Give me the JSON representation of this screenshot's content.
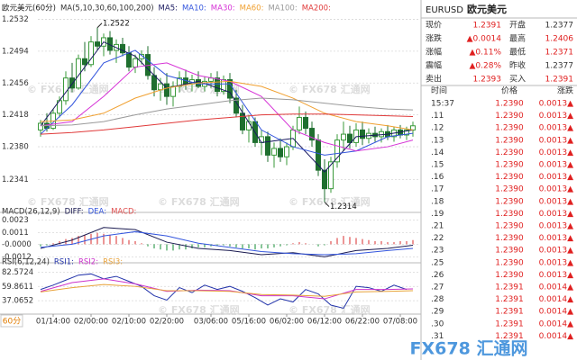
{
  "chart_data": [
    {
      "type": "candlestick",
      "title": "欧元美元(60分)",
      "params": "MA(5,10,30,60,100,200)",
      "ylim": [
        1.2306,
        1.254
      ],
      "yticks": [
        1.2532,
        1.2494,
        1.2456,
        1.2418,
        {
          "value": 1.238,
          "label": "1.2380"
        },
        1.2341
      ],
      "grid": true,
      "up_color": "#3a9a3a",
      "down_color": "#1f6f2f",
      "open": [
        1.24,
        1.2408,
        1.2402,
        1.242,
        1.2435,
        1.2462,
        1.245,
        1.2485,
        1.2478,
        1.2505,
        1.25,
        1.251,
        1.2495,
        1.2502,
        1.2492,
        1.2475,
        1.2485,
        1.249,
        1.2465,
        1.2448,
        1.2455,
        1.244,
        1.2452,
        1.2462,
        1.2455,
        1.246,
        1.2452,
        1.2458,
        1.2462,
        1.2446,
        1.246,
        1.2438,
        1.242,
        1.24,
        1.241,
        1.2385,
        1.2392,
        1.237,
        1.2378,
        1.2368,
        1.238,
        1.24,
        1.2415,
        1.2402,
        1.2388,
        1.2352,
        1.233,
        1.2362,
        1.2388,
        1.2395,
        1.2385,
        1.24,
        1.239,
        1.2396,
        1.2392,
        1.2398,
        1.2392,
        1.24,
        1.2394,
        1.24
      ],
      "high": [
        1.2412,
        1.242,
        1.2425,
        1.244,
        1.247,
        1.248,
        1.249,
        1.2505,
        1.2512,
        1.2522,
        1.2515,
        1.2518,
        1.2508,
        1.251,
        1.25,
        1.249,
        1.2495,
        1.25,
        1.2475,
        1.2462,
        1.2468,
        1.2458,
        1.247,
        1.2472,
        1.2466,
        1.247,
        1.2464,
        1.2468,
        1.247,
        1.2465,
        1.2468,
        1.2448,
        1.243,
        1.2418,
        1.2415,
        1.24,
        1.2398,
        1.2385,
        1.239,
        1.2385,
        1.2405,
        1.2428,
        1.2422,
        1.241,
        1.2395,
        1.2365,
        1.2368,
        1.2395,
        1.241,
        1.2405,
        1.2408,
        1.241,
        1.2402,
        1.2404,
        1.2402,
        1.2406,
        1.2404,
        1.2406,
        1.2404,
        1.241
      ],
      "low": [
        1.2392,
        1.2398,
        1.24,
        1.2415,
        1.243,
        1.2445,
        1.2448,
        1.247,
        1.2475,
        1.2495,
        1.2488,
        1.249,
        1.248,
        1.2488,
        1.247,
        1.2468,
        1.2478,
        1.246,
        1.244,
        1.2435,
        1.243,
        1.2428,
        1.2445,
        1.2448,
        1.2446,
        1.245,
        1.2446,
        1.245,
        1.244,
        1.2442,
        1.2432,
        1.2415,
        1.2395,
        1.2385,
        1.238,
        1.237,
        1.2362,
        1.2355,
        1.2362,
        1.2358,
        1.2376,
        1.2395,
        1.2395,
        1.238,
        1.2345,
        1.2314,
        1.2325,
        1.2355,
        1.2375,
        1.2378,
        1.238,
        1.2382,
        1.2384,
        1.2386,
        1.2385,
        1.2388,
        1.2386,
        1.239,
        1.2388,
        1.2392
      ],
      "close": [
        1.2408,
        1.2402,
        1.242,
        1.2435,
        1.2462,
        1.245,
        1.2485,
        1.2478,
        1.2505,
        1.25,
        1.251,
        1.2495,
        1.2502,
        1.2492,
        1.2475,
        1.2485,
        1.249,
        1.2465,
        1.2448,
        1.2455,
        1.244,
        1.2452,
        1.2462,
        1.2455,
        1.246,
        1.2452,
        1.2458,
        1.2462,
        1.2446,
        1.246,
        1.2438,
        1.242,
        1.24,
        1.241,
        1.2385,
        1.2392,
        1.237,
        1.2378,
        1.2368,
        1.238,
        1.24,
        1.2415,
        1.2402,
        1.2388,
        1.2352,
        1.233,
        1.2362,
        1.2388,
        1.2395,
        1.2385,
        1.24,
        1.239,
        1.2396,
        1.2392,
        1.2398,
        1.2392,
        1.24,
        1.2394,
        1.24,
        1.2405
      ],
      "annotations": [
        {
          "index": 9,
          "value": 1.2522,
          "label": "1.2522"
        },
        {
          "index": 45,
          "value": 1.2314,
          "label": "1.2314"
        }
      ],
      "series": [
        {
          "name": "MA5:",
          "color": "#1a1a60",
          "x": [
            0,
            5,
            10,
            15,
            20,
            25,
            30,
            35,
            40,
            45,
            50,
            55,
            59
          ],
          "values": [
            1.2405,
            1.2455,
            1.2505,
            1.2488,
            1.245,
            1.2458,
            1.2445,
            1.2385,
            1.239,
            1.235,
            1.2392,
            1.2395,
            1.24
          ]
        },
        {
          "name": "MA10:",
          "color": "#3355dd",
          "x": [
            0,
            5,
            10,
            15,
            20,
            25,
            30,
            35,
            40,
            45,
            50,
            55,
            59
          ],
          "values": [
            1.2395,
            1.243,
            1.248,
            1.2495,
            1.2465,
            1.2455,
            1.2455,
            1.24,
            1.238,
            1.237,
            1.2375,
            1.2392,
            1.2396
          ]
        },
        {
          "name": "MA30:",
          "color": "#d633d6",
          "x": [
            0,
            5,
            10,
            15,
            20,
            25,
            30,
            35,
            40,
            45,
            50,
            55,
            59
          ],
          "values": [
            1.2405,
            1.241,
            1.244,
            1.2475,
            1.248,
            1.2465,
            1.2458,
            1.244,
            1.24,
            1.2385,
            1.2375,
            1.238,
            1.2388
          ]
        },
        {
          "name": "MA60:",
          "color": "#f0a030",
          "x": [
            0,
            5,
            10,
            15,
            20,
            25,
            30,
            35,
            40,
            45,
            50,
            55,
            59
          ],
          "values": [
            1.241,
            1.2412,
            1.242,
            1.2438,
            1.245,
            1.2456,
            1.2458,
            1.2452,
            1.2438,
            1.242,
            1.241,
            1.2405,
            1.24
          ]
        },
        {
          "name": "MA100:",
          "color": "#9a9a9a",
          "x": [
            0,
            5,
            10,
            15,
            20,
            25,
            30,
            35,
            40,
            45,
            50,
            55,
            59
          ],
          "values": [
            1.2405,
            1.2406,
            1.241,
            1.2418,
            1.2425,
            1.243,
            1.2435,
            1.2438,
            1.2436,
            1.2432,
            1.2428,
            1.2425,
            1.2424
          ]
        },
        {
          "name": "MA200:",
          "color": "#e03a3a",
          "x": [
            0,
            5,
            10,
            15,
            20,
            25,
            30,
            35,
            40,
            45,
            50,
            55,
            59
          ],
          "values": [
            1.2395,
            1.2397,
            1.24,
            1.2404,
            1.2408,
            1.2412,
            1.2415,
            1.2418,
            1.2419,
            1.2419,
            1.2418,
            1.2417,
            1.2416
          ]
        }
      ]
    },
    {
      "type": "macd",
      "title": "MACD(26,12,9)",
      "ylim": [
        -0.0016,
        0.0027
      ],
      "yticks": [
        0.0023,
        0.0011,
        {
          "value": 0,
          "label": "-0.0000"
        },
        -0.0012
      ],
      "grid": true,
      "bar_name": "MACD:",
      "bar_up_color": "#e05050",
      "bar_down_color": "#3aa055",
      "bars": [
        -0.0002,
        -0.0001,
        0.0001,
        0.0003,
        0.0005,
        0.0006,
        0.0008,
        0.0009,
        0.001,
        0.0011,
        0.001,
        0.0009,
        0.0008,
        0.0006,
        0.0004,
        0.0003,
        0.0001,
        -0.0002,
        -0.0004,
        -0.0005,
        -0.0006,
        -0.0006,
        -0.0005,
        -0.0005,
        -0.0004,
        -0.0003,
        -0.0003,
        -0.0002,
        -0.0001,
        -0.0001,
        -0.0002,
        -0.0003,
        -0.0004,
        -0.0004,
        -0.0005,
        -0.0004,
        -0.0004,
        -0.0003,
        -0.0002,
        -0.0001,
        0.0001,
        0.0002,
        0.0001,
        0,
        -0.0002,
        -0.0001,
        0.0003,
        0.0006,
        0.0008,
        0.0007,
        0.0006,
        0.0005,
        0.0004,
        0.0003,
        0.0003,
        0.0002,
        0.0002,
        0.0003,
        0.0003,
        0.0004
      ],
      "series": [
        {
          "name": "DIFF:",
          "color": "#1a1a50",
          "x": [
            0,
            5,
            10,
            15,
            20,
            25,
            30,
            35,
            40,
            45,
            50,
            55,
            59
          ],
          "values": [
            -0.0004,
            0.0004,
            0.0016,
            0.0014,
            0.0002,
            -0.0004,
            -0.0006,
            -0.001,
            -0.0008,
            -0.0012,
            -0.0006,
            -0.0004,
            -0.0001
          ]
        },
        {
          "name": "DEA:",
          "color": "#3355dd",
          "x": [
            0,
            5,
            10,
            15,
            20,
            25,
            30,
            35,
            40,
            45,
            50,
            55,
            59
          ],
          "values": [
            -0.0003,
            0,
            0.0008,
            0.0012,
            0.0008,
            0.0001,
            -0.0003,
            -0.0007,
            -0.0009,
            -0.001,
            -0.0009,
            -0.0006,
            -0.0004
          ]
        }
      ]
    },
    {
      "type": "line",
      "title": "RSI(6,12,24)",
      "ylim": [
        17,
        92
      ],
      "yticks": [
        82.5724,
        59.8611,
        37.0652
      ],
      "grid": true,
      "xticks": [
        {
          "value": 2,
          "label": "01/14:00"
        },
        {
          "value": 8,
          "label": "02/00:00"
        },
        {
          "value": 14,
          "label": "02/10:00"
        },
        {
          "value": 20,
          "label": "02/20:00"
        },
        {
          "value": 27,
          "label": "03/06:00"
        },
        {
          "value": 33,
          "label": "05/16:00"
        },
        {
          "value": 39,
          "label": "06/02:00"
        },
        {
          "value": 45,
          "label": "06/12:00"
        },
        {
          "value": 51,
          "label": "06/22:00"
        },
        {
          "value": 57,
          "label": "07/08:00"
        }
      ],
      "series": [
        {
          "name": "RSI1:",
          "color": "#2233aa",
          "x": [
            0,
            2,
            4,
            6,
            8,
            10,
            12,
            14,
            16,
            18,
            20,
            22,
            24,
            26,
            28,
            30,
            32,
            34,
            36,
            38,
            40,
            42,
            44,
            46,
            48,
            50,
            52,
            54,
            56,
            58
          ],
          "values": [
            55,
            62,
            70,
            78,
            80,
            72,
            76,
            68,
            60,
            45,
            38,
            58,
            50,
            62,
            55,
            60,
            52,
            42,
            30,
            40,
            35,
            55,
            48,
            30,
            25,
            60,
            58,
            52,
            62,
            55
          ]
        },
        {
          "name": "RSI2:",
          "color": "#cc33cc",
          "x": [
            0,
            5,
            10,
            15,
            20,
            25,
            30,
            35,
            40,
            45,
            50,
            55,
            59
          ],
          "values": [
            52,
            66,
            72,
            64,
            52,
            54,
            53,
            45,
            45,
            40,
            55,
            55,
            56
          ]
        },
        {
          "name": "RSI3:",
          "color": "#e8a23a",
          "x": [
            0,
            5,
            10,
            15,
            20,
            25,
            30,
            35,
            40,
            45,
            50,
            55,
            59
          ],
          "values": [
            51,
            58,
            63,
            60,
            53,
            53,
            52,
            47,
            46,
            44,
            51,
            52,
            53
          ]
        }
      ]
    }
  ],
  "period_button": "60分",
  "watermark": "© FX678 汇通网",
  "logo": "FX678 汇通网",
  "quote": {
    "symbol": "EURUSD",
    "name": "欧元美元",
    "rows": [
      [
        "现价",
        "1.2391",
        "开盘",
        "1.2377"
      ],
      [
        "涨跌",
        "▲0.0014",
        "最高",
        "1.2406"
      ],
      [
        "涨幅",
        "▲0.11%",
        "最低",
        "1.2371"
      ],
      [
        "震幅",
        "▲0.28%",
        "昨收",
        "1.2377"
      ],
      [
        "卖出",
        "1.2393",
        "买入",
        "1.2391"
      ]
    ]
  },
  "trades": {
    "columns": [
      "时间",
      "价格",
      "涨跌"
    ],
    "rows": [
      [
        "15:37",
        "1.2390",
        "0.0013▲"
      ],
      [
        ".11",
        "1.2390",
        "0.0013▲"
      ],
      [
        ".12",
        "1.2390",
        "0.0013▲"
      ],
      [
        ".13",
        "1.2390",
        "0.0013▲"
      ],
      [
        ".14",
        "1.2390",
        "0.0013▲"
      ],
      [
        ".15",
        "1.2390",
        "0.0013▲"
      ],
      [
        ".16",
        "1.2390",
        "0.0013▲"
      ],
      [
        ".17",
        "1.2390",
        "0.0013▲"
      ],
      [
        ".18",
        "1.2390",
        "0.0013▲"
      ],
      [
        ".19",
        "1.2390",
        "0.0013▲"
      ],
      [
        ".21",
        "1.2390",
        "0.0013▲"
      ],
      [
        ".22",
        "1.2390",
        "0.0013▲"
      ],
      [
        ".23",
        "1.2390",
        "0.0013▲"
      ],
      [
        ".25",
        "1.2390",
        "0.0013▲"
      ],
      [
        ".26",
        "1.2390",
        "0.0013▲"
      ],
      [
        ".27",
        "1.2391",
        "0.0014▲"
      ],
      [
        ".28",
        "1.2391",
        "0.0014▲"
      ],
      [
        ".29",
        "1.2391",
        "0.0014▲"
      ],
      [
        ".30",
        "1.2391",
        "0.0014▲"
      ],
      [
        ".31",
        "1.2391",
        "0.0014▲"
      ]
    ]
  }
}
